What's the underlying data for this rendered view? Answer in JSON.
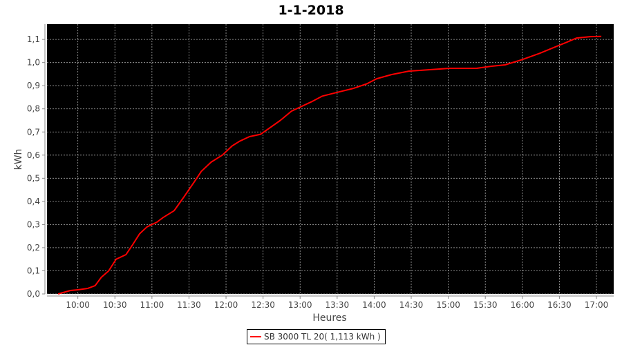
{
  "chart_data": {
    "type": "line",
    "title": "1-1-2018",
    "xlabel": "Heures",
    "ylabel": "kWh",
    "xlim": [
      "09:35",
      "17:14"
    ],
    "ylim": [
      0,
      1.166
    ],
    "x_ticks": [
      "10:00",
      "10:30",
      "11:00",
      "11:30",
      "12:00",
      "12:30",
      "13:00",
      "13:30",
      "14:00",
      "14:30",
      "15:00",
      "15:30",
      "16:00",
      "16:30",
      "17:00"
    ],
    "y_ticks": [
      "0,0",
      "0,1",
      "0,2",
      "0,3",
      "0,4",
      "0,5",
      "0,6",
      "0,7",
      "0,8",
      "0,9",
      "1,0",
      "1,1"
    ],
    "grid": true,
    "background": "#000000",
    "legend_position": "bottom",
    "series": [
      {
        "name": "SB 3000 TL 20( 1,113 kWh )",
        "color": "#ff0000",
        "x": [
          "09:44",
          "09:54",
          "10:00",
          "10:08",
          "10:14",
          "10:19",
          "10:25",
          "10:31",
          "10:39",
          "10:44",
          "10:50",
          "10:56",
          "11:04",
          "11:09",
          "11:18",
          "11:26",
          "11:35",
          "11:40",
          "11:48",
          "11:57",
          "12:05",
          "12:11",
          "12:19",
          "12:28",
          "12:36",
          "12:44",
          "12:53",
          "13:01",
          "13:09",
          "13:18",
          "13:29",
          "13:43",
          "13:54",
          "14:02",
          "14:14",
          "14:28",
          "14:44",
          "15:01",
          "15:23",
          "15:35",
          "15:46",
          "16:00",
          "16:14",
          "16:25",
          "16:36",
          "16:44",
          "16:55",
          "17:04"
        ],
        "y": [
          0,
          0.015,
          0.018,
          0.024,
          0.036,
          0.072,
          0.1,
          0.15,
          0.17,
          0.21,
          0.26,
          0.29,
          0.31,
          0.33,
          0.36,
          0.42,
          0.49,
          0.53,
          0.57,
          0.6,
          0.64,
          0.66,
          0.68,
          0.69,
          0.72,
          0.75,
          0.79,
          0.81,
          0.83,
          0.855,
          0.87,
          0.888,
          0.908,
          0.93,
          0.948,
          0.963,
          0.969,
          0.975,
          0.975,
          0.984,
          0.99,
          1.013,
          1.04,
          1.064,
          1.088,
          1.106,
          1.112,
          1.113
        ]
      }
    ]
  }
}
